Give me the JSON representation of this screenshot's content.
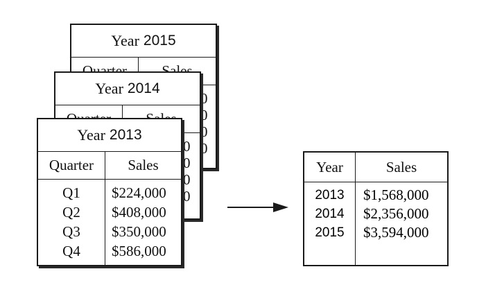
{
  "back_card_2015": {
    "title_word": "Year",
    "title_year": "2015",
    "col_quarter": "Quarter",
    "col_sales": "Sales",
    "peek_digits": [
      "0",
      "0",
      "0",
      "0"
    ]
  },
  "back_card_2014": {
    "title_word": "Year",
    "title_year": "2014",
    "col_quarter": "Quarter",
    "col_sales": "Sales",
    "peek_digits": [
      "0",
      "0",
      "0",
      "0"
    ]
  },
  "front_card_2013": {
    "title_word": "Year",
    "title_year": "2013",
    "col_quarter": "Quarter",
    "col_sales": "Sales",
    "rows": [
      {
        "quarter": "Q1",
        "sales": "$224,000"
      },
      {
        "quarter": "Q2",
        "sales": "$408,000"
      },
      {
        "quarter": "Q3",
        "sales": "$350,000"
      },
      {
        "quarter": "Q4",
        "sales": "$586,000"
      }
    ]
  },
  "summary_table": {
    "col_year": "Year",
    "col_sales": "Sales",
    "rows": [
      {
        "year": "2013",
        "sales": "$1,568,000"
      },
      {
        "year": "2014",
        "sales": "$2,356,000"
      },
      {
        "year": "2015",
        "sales": "$3,594,000"
      }
    ]
  }
}
